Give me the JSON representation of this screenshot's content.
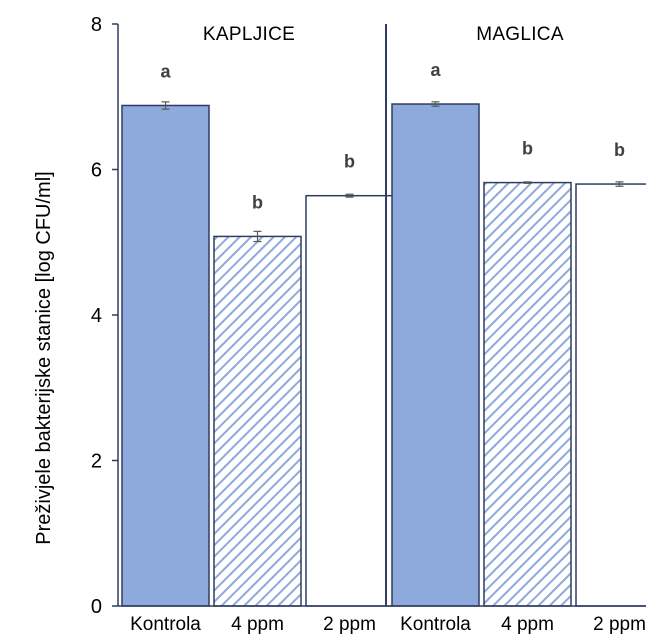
{
  "chart_data": {
    "type": "bar",
    "title": "",
    "xlabel": "",
    "ylabel": "Preživjele bakterijske stanice [log CFU/ml]",
    "ylim": [
      0,
      8
    ],
    "yticks": [
      0,
      2,
      4,
      6,
      8
    ],
    "grid": false,
    "legend": "none",
    "groups": [
      {
        "name": "KAPLJICE",
        "bars": [
          {
            "category": "Kontrola",
            "value": 6.88,
            "error": 0.05,
            "significance": "a",
            "fill": "solid"
          },
          {
            "category": "4 ppm",
            "value": 5.08,
            "error": 0.07,
            "significance": "b",
            "fill": "hatched"
          },
          {
            "category": "2 ppm",
            "value": 5.64,
            "error": 0.02,
            "significance": "b",
            "fill": "white"
          }
        ]
      },
      {
        "name": "MAGLICA",
        "bars": [
          {
            "category": "Kontrola",
            "value": 6.9,
            "error": 0.03,
            "significance": "a",
            "fill": "solid"
          },
          {
            "category": "4 ppm",
            "value": 5.82,
            "error": 0.01,
            "significance": "b",
            "fill": "hatched"
          },
          {
            "category": "2 ppm",
            "value": 5.8,
            "error": 0.03,
            "significance": "b",
            "fill": "white"
          }
        ]
      }
    ]
  },
  "colors": {
    "bar_fill": "#8EA9DB",
    "bar_stroke": "#2F3D63",
    "hatch": "#8EA9DB",
    "axis": "#2F3D63",
    "divider": "#2F3D63",
    "error_bar": "#595959"
  }
}
